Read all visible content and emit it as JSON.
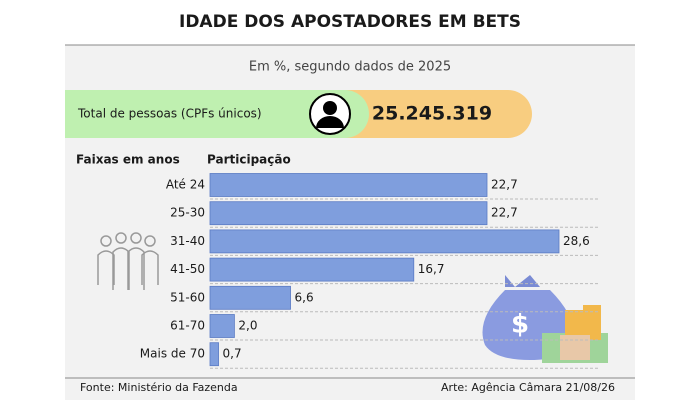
{
  "chart_data": {
    "type": "bar",
    "orientation": "horizontal",
    "title": "IDADE DOS APOSTADORES EM BETS",
    "subtitle": "Em %, segundo dados de 2025",
    "highlight": {
      "label": "Total de pessoas (CPFs únicos)",
      "value": "25.245.319"
    },
    "category_header": "Faixas em anos",
    "value_header": "Participação",
    "categories": [
      "Até 24",
      "25-30",
      "31-40",
      "41-50",
      "51-60",
      "61-70",
      "Mais de 70"
    ],
    "values": [
      22.7,
      22.7,
      28.6,
      16.7,
      6.6,
      2.0,
      0.7
    ],
    "value_labels": [
      "22,7",
      "22,7",
      "28,6",
      "16,7",
      "6,6",
      "2,0",
      "0,7"
    ],
    "color": "#7f9edd",
    "source": "Fonte: Ministério da Fazenda",
    "credit": "Arte: Agência Câmara 21/08/26"
  }
}
